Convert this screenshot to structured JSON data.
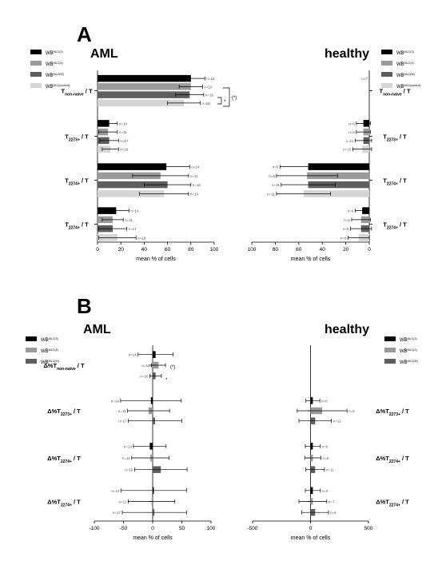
{
  "panels": [
    {
      "letter": "A",
      "title_left": "AML",
      "title_right": "healthy"
    },
    {
      "letter": "B",
      "title_left": "AML",
      "title_right": "healthy"
    }
  ],
  "legends": {
    "A_left": [
      "WB^MLC(3)",
      "WB^MLC(4)",
      "WB^MLC(M)",
      "WB^MLC(control)"
    ],
    "A_right": [
      "WB^MLC(3)",
      "WB^MLC(4)",
      "WB^MLC(M)",
      "WB^MLC(control)"
    ],
    "B_left": [
      "WB^MLC(3)",
      "WB^MLC(4)",
      "WB^MLC(M)"
    ],
    "B_right": [
      "WB^MLC(3)",
      "WB^MLC(4)",
      "WB^MLC(M)"
    ]
  },
  "colors": {
    "WB^MLC(3)": "#000000",
    "WB^MLC(4)": "#9a9a9a",
    "WB^MLC(M)": "#5e5e5e",
    "WB^MLC(control)": "#d4d4d4"
  },
  "significance": {
    "marks": [
      "(*)",
      "*"
    ]
  },
  "chart_data": [
    {
      "id": "A_AML",
      "type": "bar",
      "orientation": "horizontal",
      "categories": [
        "T_non-naive / T",
        "T_2273+ / T",
        "T_2274+ / T",
        "T_2274+ / T"
      ],
      "category_display": [
        {
          "base": "T",
          "sub": "non-naive",
          "suffix": "/ T"
        },
        {
          "base": "T",
          "sub": "2273+",
          "suffix": "/ T"
        },
        {
          "base": "T",
          "sub": "2274+",
          "suffix": "/ T"
        },
        {
          "base": "T",
          "sub": "2274+",
          "suffix": "/ T"
        }
      ],
      "series": [
        {
          "name": "WB^MLC(3)",
          "values": [
            80,
            10,
            59,
            16
          ],
          "errors": [
            12,
            7,
            20,
            11
          ],
          "n": [
            "n=14",
            "n=14",
            "n=14",
            "n=14"
          ]
        },
        {
          "name": "WB^MLC(4)",
          "values": [
            80,
            9,
            54,
            13
          ],
          "errors": [
            10,
            8,
            24,
            9
          ],
          "n": [
            "n=10",
            "n=11",
            "n=11",
            "n=11"
          ]
        },
        {
          "name": "WB^MLC(M)",
          "values": [
            79,
            10,
            60,
            13
          ],
          "errors": [
            12,
            8,
            20,
            12
          ],
          "n": [
            "n=16",
            "n=17",
            "n=16",
            "n=17"
          ]
        },
        {
          "name": "WB^MLC(control)",
          "values": [
            74,
            11,
            57,
            17
          ],
          "errors": [
            14,
            7,
            21,
            16
          ],
          "n": [
            "n=20",
            "n=19",
            "n=19",
            "n=19"
          ]
        }
      ],
      "significance": [
        {
          "category": "T_non-naive / T",
          "pairs": [
            [
              "WB^MLC(4)",
              "WB^MLC(M)",
              "*"
            ],
            [
              "WB^MLC(3)",
              "WB^MLC(control)",
              "(*)"
            ]
          ]
        }
      ],
      "xlabel": "mean % of cells",
      "xlim": [
        0,
        100
      ],
      "xticks": [
        0,
        20,
        40,
        60,
        80,
        100
      ],
      "legend": "top-left"
    },
    {
      "id": "A_healthy",
      "type": "bar",
      "orientation": "horizontal",
      "x_reversed": true,
      "categories": [
        "T_non-naive / T",
        "T_2273+ / T",
        "T_2274+ / T",
        "T_2274+ / T"
      ],
      "category_display": [
        {
          "base": "T",
          "sub": "non-naive",
          "suffix": "/ T"
        },
        {
          "base": "T",
          "sub": "2273+",
          "suffix": "/ T"
        },
        {
          "base": "T",
          "sub": "2274+",
          "suffix": "/ T"
        },
        {
          "base": "T",
          "sub": "2274+",
          "suffix": "/ T"
        }
      ],
      "series": [
        {
          "name": "WB^MLC(3)",
          "values": [
            0,
            5,
            52,
            6
          ],
          "errors": [
            0,
            6,
            24,
            6
          ],
          "n": [
            "n=7",
            "n=6",
            "n=6",
            "n=6"
          ]
        },
        {
          "name": "WB^MLC(4)",
          "values": [
            0,
            5,
            53,
            7
          ],
          "errors": [
            0,
            6,
            26,
            8
          ],
          "n": [
            "",
            "n=6",
            "n=6",
            "n=5"
          ]
        },
        {
          "name": "WB^MLC(M)",
          "values": [
            0,
            5,
            52,
            7
          ],
          "errors": [
            0,
            7,
            23,
            9
          ],
          "n": [
            "",
            "n=11",
            "n=11",
            "n=6"
          ]
        },
        {
          "name": "WB^MLC(control)",
          "values": [
            0,
            6,
            56,
            9
          ],
          "errors": [
            0,
            8,
            23,
            9
          ],
          "n": [
            "",
            "n=10",
            "n=11",
            "n=6"
          ]
        }
      ],
      "xlabel": "mean % of cells",
      "xlim": [
        100,
        0
      ],
      "xticks": [
        100,
        80,
        60,
        40,
        20,
        0
      ],
      "legend": "top-right"
    },
    {
      "id": "B_AML",
      "type": "bar",
      "orientation": "horizontal",
      "categories": [
        "Δ%T_non-naive / T",
        "Δ%T_2273+ / T",
        "Δ%T_2274+ / T",
        "Δ%T_2274+ / T"
      ],
      "category_display": [
        {
          "base": "Δ%T",
          "sub": "non-naive",
          "suffix": "/ T"
        },
        {
          "base": "Δ%T",
          "sub": "2273+",
          "suffix": "/ T"
        },
        {
          "base": "Δ%T",
          "sub": "2274+",
          "suffix": "/ T"
        },
        {
          "base": "Δ%T",
          "sub": "2274+",
          "suffix": "/ T"
        }
      ],
      "series": [
        {
          "name": "WB^MLC(3)",
          "values": [
            5,
            -3,
            -5,
            2
          ],
          "errors": [
            30,
            52,
            28,
            56
          ],
          "n": [
            "n=14",
            "n=14",
            "n=14",
            "n=14"
          ]
        },
        {
          "name": "WB^MLC(4)",
          "values": [
            10,
            -7,
            -4,
            -2
          ],
          "errors": [
            12,
            36,
            32,
            40
          ],
          "n": [
            "n=10",
            "n=11",
            "n=11",
            "n=11"
          ]
        },
        {
          "name": "WB^MLC(M)",
          "values": [
            5,
            4,
            14,
            3
          ],
          "errors": [
            10,
            46,
            45,
            55
          ],
          "n": [
            "n=16",
            "n=17",
            "n=16",
            "n=17"
          ]
        }
      ],
      "annotations": [
        "(*)",
        "*"
      ],
      "xlabel": "mean % of cells",
      "xlim": [
        -100,
        100
      ],
      "xticks": [
        -100,
        -50,
        0,
        50,
        100
      ],
      "legend": "top-left"
    },
    {
      "id": "B_healthy",
      "type": "bar",
      "orientation": "horizontal",
      "categories": [
        "Δ%T_2273+ / T",
        "Δ%T_2274+ / T",
        "Δ%T_2274+ / T"
      ],
      "category_display": [
        {
          "base": "Δ%T",
          "sub": "2273+",
          "suffix": "/ T"
        },
        {
          "base": "Δ%T",
          "sub": "2274+",
          "suffix": "/ T"
        },
        {
          "base": "Δ%T",
          "sub": "2274+",
          "suffix": "/ T"
        }
      ],
      "series": [
        {
          "name": "WB^MLC(3)",
          "values": [
            20,
            20,
            20
          ],
          "errors": [
            60,
            65,
            65
          ],
          "n": [
            "n=6",
            "n=6",
            "n=6"
          ]
        },
        {
          "name": "WB^MLC(4)",
          "values": [
            100,
            20,
            20
          ],
          "errors": [
            215,
            70,
            120
          ],
          "n": [
            "n=6",
            "n=6",
            "n=7"
          ]
        },
        {
          "name": "WB^MLC(M)",
          "values": [
            40,
            40,
            40
          ],
          "errors": [
            140,
            80,
            115
          ],
          "n": [
            "n=11",
            "n=11",
            "n=6"
          ]
        }
      ],
      "xlabel": "mean % of cells",
      "xlim": [
        -500,
        500
      ],
      "xticks": [
        -500,
        0,
        500
      ],
      "legend": "top-right"
    }
  ]
}
